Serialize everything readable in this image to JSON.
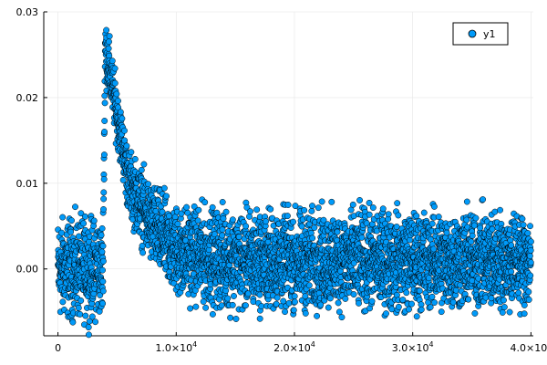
{
  "chart_data": {
    "type": "scatter",
    "title": "",
    "xlabel": "",
    "ylabel": "",
    "xlim": [
      -1200,
      40200
    ],
    "ylim": [
      -0.0078,
      0.03
    ],
    "grid": true,
    "legend_position": "top-right",
    "x_ticks": [
      {
        "value": 0,
        "label": "0"
      },
      {
        "value": 10000,
        "label": "1.0×10",
        "exp": "4"
      },
      {
        "value": 20000,
        "label": "2.0×10",
        "exp": "4"
      },
      {
        "value": 30000,
        "label": "3.0×10",
        "exp": "4"
      },
      {
        "value": 40000,
        "label": "4.0×10",
        "exp": "4"
      }
    ],
    "y_ticks": [
      {
        "value": 0.0,
        "label": "0.00"
      },
      {
        "value": 0.01,
        "label": "0.01"
      },
      {
        "value": 0.02,
        "label": "0.02"
      },
      {
        "value": 0.03,
        "label": "0.03"
      }
    ],
    "series": [
      {
        "name": "y1",
        "color": "#009af9",
        "marker_edge": "#000000",
        "n_points": 4000,
        "x_range": [
          0,
          40000
        ],
        "profile": [
          {
            "x": 0,
            "mean": 0.0,
            "spread": 0.006
          },
          {
            "x": 3800,
            "mean": 0.0,
            "spread": 0.006
          },
          {
            "x": 4000,
            "mean": 0.026,
            "spread": 0.004
          },
          {
            "x": 5000,
            "mean": 0.018,
            "spread": 0.0035
          },
          {
            "x": 6000,
            "mean": 0.01,
            "spread": 0.004
          },
          {
            "x": 8000,
            "mean": 0.005,
            "spread": 0.005
          },
          {
            "x": 10000,
            "mean": 0.002,
            "spread": 0.0055
          },
          {
            "x": 15000,
            "mean": 0.001,
            "spread": 0.006
          },
          {
            "x": 40000,
            "mean": 0.001,
            "spread": 0.006
          }
        ]
      }
    ]
  }
}
